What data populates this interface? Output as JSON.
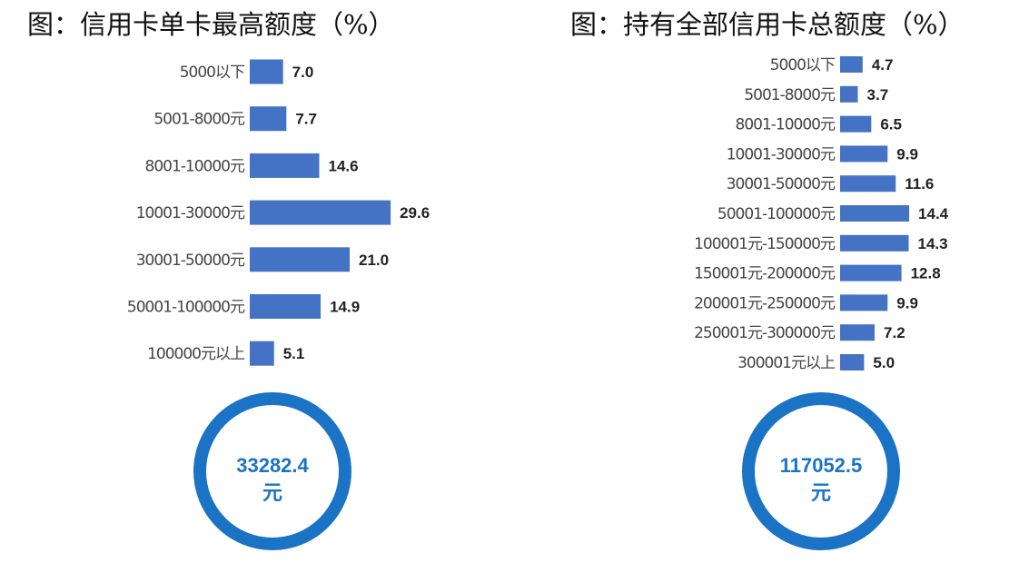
{
  "colors": {
    "bar": "#4472c4",
    "ring": "#1b73c6",
    "ring_text": "#1b73c6"
  },
  "chart_data": [
    {
      "type": "bar",
      "orientation": "horizontal",
      "title": "图：信用卡单卡最高额度（%）",
      "categories": [
        "5000以下",
        "5001-8000元",
        "8001-10000元",
        "10001-30000元",
        "30001-50000元",
        "50001-100000元",
        "100000元以上"
      ],
      "values": [
        7.0,
        7.7,
        14.6,
        29.6,
        21.0,
        14.9,
        5.1
      ],
      "data_labels": [
        "7.0",
        "7.7",
        "14.6",
        "29.6",
        "21.0",
        "14.9",
        "5.1"
      ],
      "xlim": [
        0,
        30
      ],
      "grid": false,
      "summary": {
        "value": "33282.4",
        "unit": "元"
      }
    },
    {
      "type": "bar",
      "orientation": "horizontal",
      "title": "图：持有全部信用卡总额度（%）",
      "categories": [
        "5000以下",
        "5001-8000元",
        "8001-10000元",
        "10001-30000元",
        "30001-50000元",
        "50001-100000元",
        "100001元-150000元",
        "150001元-200000元",
        "200001元-250000元",
        "250001元-300000元",
        "300001元以上"
      ],
      "values": [
        4.7,
        3.7,
        6.5,
        9.9,
        11.6,
        14.4,
        14.3,
        12.8,
        9.9,
        7.2,
        5.0
      ],
      "data_labels": [
        "4.7",
        "3.7",
        "6.5",
        "9.9",
        "11.6",
        "14.4",
        "14.3",
        "12.8",
        "9.9",
        "7.2",
        "5.0"
      ],
      "xlim": [
        0,
        15
      ],
      "grid": false,
      "summary": {
        "value": "117052.5",
        "unit": "元"
      }
    }
  ]
}
